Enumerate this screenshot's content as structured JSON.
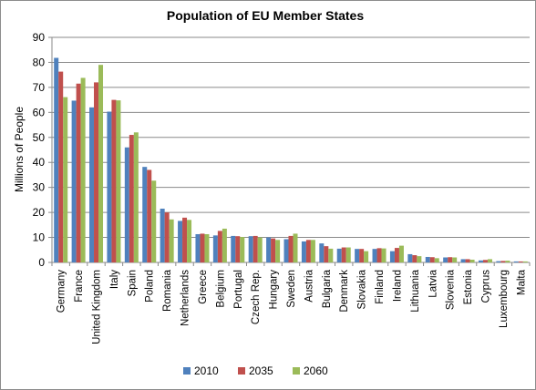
{
  "chart_data": {
    "type": "bar",
    "title": "Population of EU Member States",
    "xlabel": "",
    "ylabel": "Millions of People",
    "ylim": [
      0,
      90
    ],
    "yticks": [
      0,
      10,
      20,
      30,
      40,
      50,
      60,
      70,
      80,
      90
    ],
    "grid": true,
    "legend": "bottom",
    "categories": [
      "Germany",
      "France",
      "United Kingdom",
      "Italy",
      "Spain",
      "Poland",
      "Romania",
      "Netherlands",
      "Greece",
      "Belgium",
      "Portugal",
      "Czech Rep.",
      "Hungary",
      "Sweden",
      "Austria",
      "Bulgaria",
      "Denmark",
      "Slovakia",
      "Finland",
      "Ireland",
      "Lithuania",
      "Latvia",
      "Slovenia",
      "Estonia",
      "Cyprus",
      "Luxembourg",
      "Malta"
    ],
    "series": [
      {
        "name": "2010",
        "color": "#4f81bd",
        "values": [
          81.8,
          64.7,
          62.0,
          60.3,
          46.0,
          38.2,
          21.5,
          16.6,
          11.3,
          10.8,
          10.6,
          10.5,
          10.0,
          9.3,
          8.4,
          7.6,
          5.5,
          5.4,
          5.4,
          4.5,
          3.3,
          2.2,
          2.0,
          1.3,
          0.8,
          0.5,
          0.4
        ]
      },
      {
        "name": "2035",
        "color": "#c0504d",
        "values": [
          76.3,
          71.5,
          72.0,
          65.0,
          51.0,
          37.0,
          20.0,
          17.9,
          11.5,
          12.6,
          10.5,
          10.6,
          9.6,
          10.6,
          9.0,
          6.5,
          6.0,
          5.4,
          5.7,
          5.8,
          2.9,
          2.1,
          2.1,
          1.3,
          1.0,
          0.6,
          0.4
        ]
      },
      {
        "name": "2060",
        "color": "#9bbb59",
        "values": [
          66.1,
          73.8,
          79.0,
          64.8,
          52.0,
          32.7,
          17.2,
          17.0,
          11.3,
          13.5,
          10.2,
          10.0,
          9.0,
          11.5,
          9.0,
          5.5,
          6.0,
          4.5,
          5.6,
          6.7,
          2.5,
          1.7,
          2.0,
          1.1,
          1.3,
          0.7,
          0.4
        ]
      }
    ]
  }
}
